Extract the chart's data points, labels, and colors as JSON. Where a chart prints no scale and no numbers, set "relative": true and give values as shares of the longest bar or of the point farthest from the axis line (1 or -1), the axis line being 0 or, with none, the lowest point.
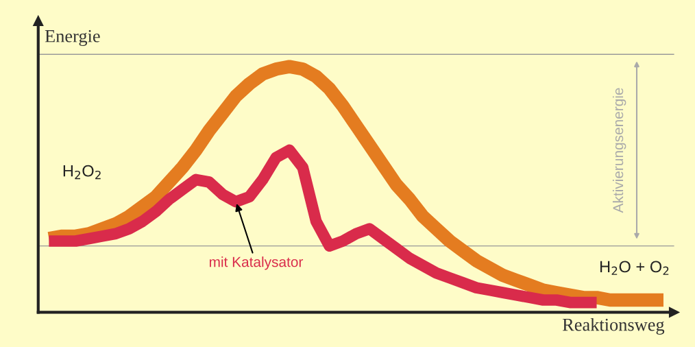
{
  "chart_data": {
    "type": "line",
    "relative": true,
    "xlabel": "Reaktionsweg",
    "ylabel": "Energie",
    "legend": false,
    "marker": "none",
    "line_style": "solid",
    "categories": [
      null,
      null,
      null,
      null,
      null,
      null,
      null,
      null,
      null,
      null,
      null,
      null,
      null,
      null,
      null,
      null,
      null,
      null,
      null,
      null,
      null,
      null,
      null,
      null,
      null,
      null,
      null,
      null,
      null,
      null,
      null,
      null,
      null,
      null,
      null,
      null,
      null,
      null,
      null,
      null,
      null,
      null,
      null,
      null,
      null,
      null,
      null
    ],
    "series": [
      {
        "color": "#e47c20",
        "values": [
          0.3,
          0.31,
          0.31,
          0.32,
          0.34,
          0.36,
          0.39,
          0.43,
          0.47,
          0.53,
          0.59,
          0.66,
          0.74,
          0.81,
          0.88,
          0.93,
          0.97,
          0.99,
          1.0,
          0.99,
          0.96,
          0.91,
          0.84,
          0.76,
          0.68,
          0.6,
          0.52,
          0.46,
          0.39,
          0.34,
          0.29,
          0.25,
          0.21,
          0.18,
          0.15,
          0.13,
          0.11,
          0.09,
          0.08,
          0.07,
          0.06,
          0.06,
          0.05,
          0.05,
          0.05,
          0.05,
          0.05
        ]
      },
      {
        "name": "mit Katalysator",
        "color": "#d92b4b",
        "values": [
          0.29,
          0.29,
          0.29,
          0.3,
          0.31,
          0.32,
          0.34,
          0.37,
          0.41,
          0.46,
          0.5,
          0.54,
          0.53,
          0.48,
          0.45,
          0.47,
          0.54,
          0.63,
          0.66,
          0.59,
          0.37,
          0.27,
          0.29,
          0.32,
          0.34,
          0.3,
          0.26,
          0.22,
          0.19,
          0.16,
          0.14,
          0.12,
          0.1,
          0.09,
          0.08,
          0.07,
          0.06,
          0.05,
          0.05,
          0.04,
          0.04,
          0.04,
          null,
          null,
          null,
          null,
          null
        ]
      }
    ],
    "ref_lines": [
      {
        "axis": "y",
        "value": 0.27,
        "color": "#999999"
      },
      {
        "axis": "y",
        "value": 1.05,
        "color": "#999999"
      }
    ],
    "annotations": [
      "H$_{2}$O$_{2}$",
      "H$_{2}$O + O$_{2}$",
      "Aktivierungsenergie"
    ]
  }
}
